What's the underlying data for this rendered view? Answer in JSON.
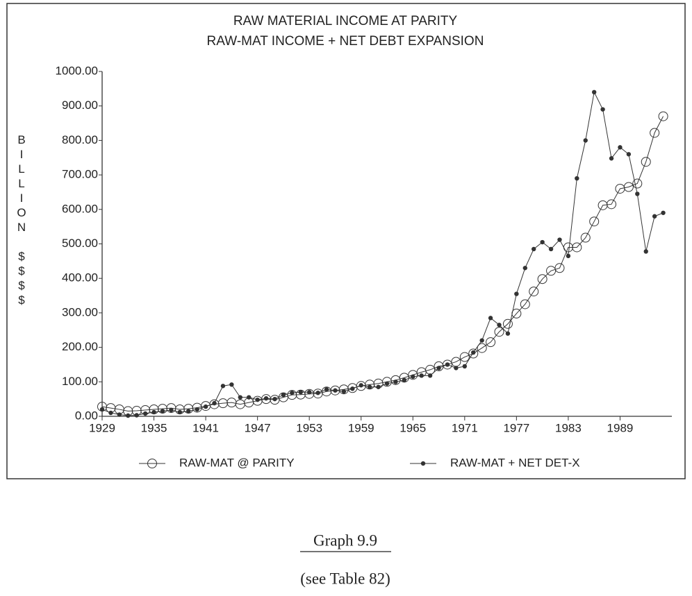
{
  "chart_data": {
    "type": "line",
    "title": "RAW MATERIAL INCOME AT PARITY",
    "subtitle": "RAW-MAT INCOME + NET DEBT EXPANSION",
    "ylabel": "BILLION $$$$",
    "x": [
      1929,
      1930,
      1931,
      1932,
      1933,
      1934,
      1935,
      1936,
      1937,
      1938,
      1939,
      1940,
      1941,
      1942,
      1943,
      1944,
      1945,
      1946,
      1947,
      1948,
      1949,
      1950,
      1951,
      1952,
      1953,
      1954,
      1955,
      1956,
      1957,
      1958,
      1959,
      1960,
      1961,
      1962,
      1963,
      1964,
      1965,
      1966,
      1967,
      1968,
      1969,
      1970,
      1971,
      1972,
      1973,
      1974,
      1975,
      1976,
      1977,
      1978,
      1979,
      1980,
      1981,
      1982,
      1983,
      1984,
      1985,
      1986,
      1987,
      1988,
      1989,
      1990,
      1991,
      1992,
      1993,
      1994
    ],
    "series": [
      {
        "name": "RAW-MAT @ PARITY",
        "color": "#333333",
        "marker": "open-circle",
        "values": [
          28,
          24,
          20,
          15,
          16,
          18,
          20,
          22,
          24,
          20,
          22,
          25,
          30,
          35,
          38,
          40,
          35,
          40,
          45,
          50,
          48,
          55,
          62,
          63,
          65,
          66,
          72,
          75,
          78,
          82,
          88,
          92,
          95,
          100,
          105,
          112,
          120,
          128,
          135,
          145,
          150,
          158,
          172,
          182,
          198,
          215,
          245,
          268,
          298,
          325,
          362,
          398,
          422,
          430,
          490,
          490,
          518,
          565,
          612,
          615,
          660,
          665,
          675,
          738,
          822,
          870
        ]
      },
      {
        "name": "RAW-MAT + NET DET-X",
        "color": "#333333",
        "marker": "dot",
        "values": [
          20,
          10,
          5,
          2,
          3,
          8,
          12,
          15,
          18,
          12,
          15,
          20,
          28,
          38,
          88,
          92,
          55,
          55,
          48,
          52,
          50,
          62,
          68,
          70,
          70,
          68,
          78,
          75,
          72,
          80,
          90,
          85,
          85,
          95,
          100,
          105,
          115,
          118,
          118,
          140,
          150,
          140,
          145,
          185,
          220,
          285,
          265,
          240,
          355,
          430,
          485,
          505,
          485,
          512,
          465,
          690,
          800,
          940,
          890,
          748,
          780,
          760,
          645,
          478,
          580,
          590
        ]
      }
    ],
    "xlim": [
      1929,
      1995
    ],
    "xticks": [
      1929,
      1935,
      1941,
      1947,
      1953,
      1959,
      1965,
      1971,
      1977,
      1983,
      1989
    ],
    "ylim": [
      0,
      1000
    ],
    "yticks": [
      {
        "value": 0,
        "label": "0.00"
      },
      {
        "value": 100,
        "label": "100.00"
      },
      {
        "value": 200,
        "label": "200.00"
      },
      {
        "value": 300,
        "label": "300.00"
      },
      {
        "value": 400,
        "label": "400.00"
      },
      {
        "value": 500,
        "label": "500.00"
      },
      {
        "value": 600,
        "label": "600.00"
      },
      {
        "value": 700,
        "label": "700.00"
      },
      {
        "value": 800,
        "label": "800.00"
      },
      {
        "value": 900,
        "label": "900.00"
      },
      {
        "value": 1000,
        "label": "1000.00"
      }
    ],
    "grid": false
  },
  "caption": {
    "title": "Graph 9.9",
    "note": "(see Table 82)"
  }
}
